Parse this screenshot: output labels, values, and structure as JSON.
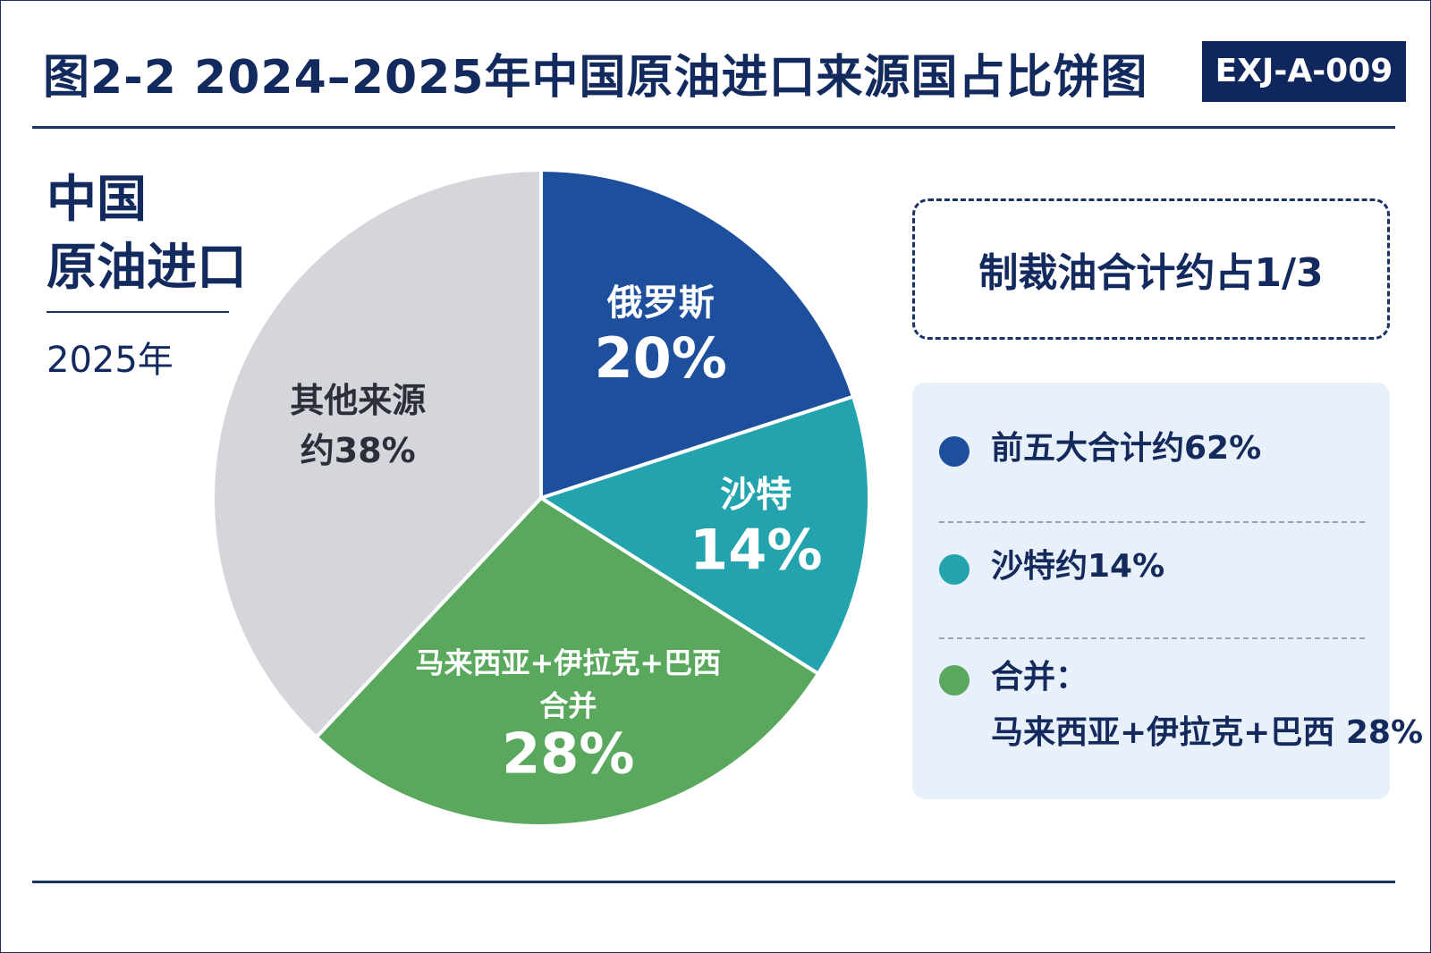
{
  "header": {
    "title": "图2-2 2024–2025年中国原油进口来源国占比饼图",
    "code": "EXJ-A-009"
  },
  "side": {
    "line1": "中国",
    "line2": "原油进口",
    "year": "2025年"
  },
  "callout": {
    "text": "制裁油合计约占1/3"
  },
  "legend": {
    "items": [
      {
        "text": "前五大合计约62%",
        "color": "#1e4f9c"
      },
      {
        "text": "沙特约14%",
        "color": "#22a3ad"
      },
      {
        "text": "合并：",
        "text2": "马来西亚+伊拉克+巴西 28%",
        "color": "#5aa85e"
      }
    ]
  },
  "chart_data": {
    "type": "pie",
    "start_angle_deg": 0,
    "direction": "clockwise",
    "slices": [
      {
        "name": "俄罗斯",
        "value": 20,
        "label_lines": [
          "俄罗斯",
          "20%"
        ],
        "color": "#1e4f9c"
      },
      {
        "name": "沙特",
        "value": 14,
        "label_lines": [
          "沙特",
          "14%"
        ],
        "color": "#22a3ad"
      },
      {
        "name": "马来西亚+伊拉克+巴西合并",
        "value": 28,
        "label_lines": [
          "马来西亚+伊拉克+巴西",
          "合并",
          "28%"
        ],
        "color": "#5aa85e"
      },
      {
        "name": "其他来源",
        "value": 38,
        "label_lines": [
          "其他来源",
          "约38%"
        ],
        "color": "#d4d6db"
      }
    ]
  }
}
